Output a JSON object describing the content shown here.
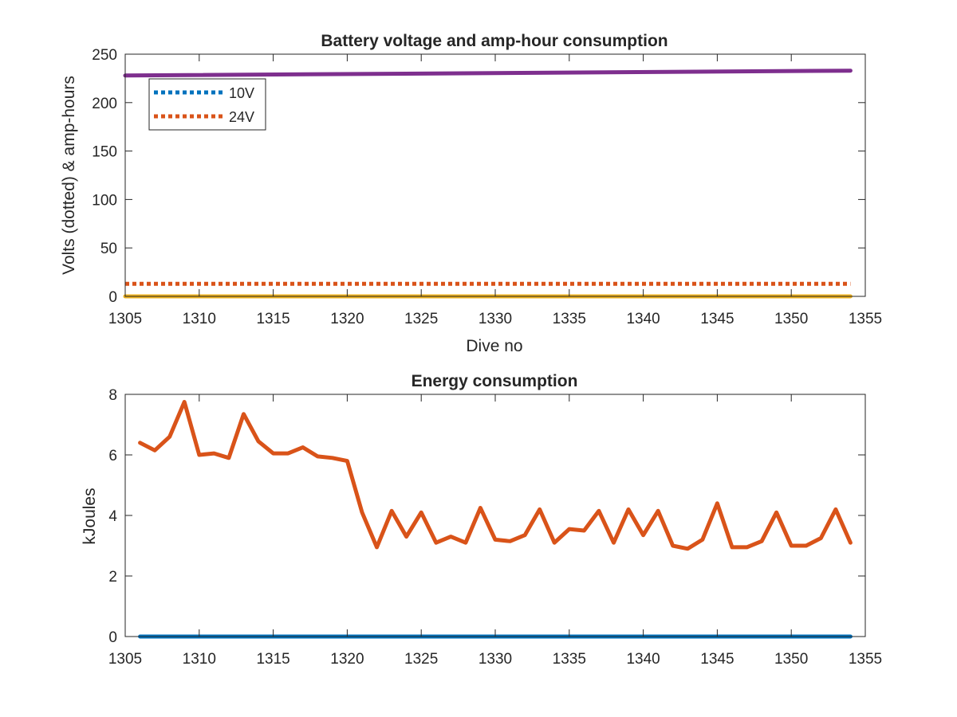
{
  "chart_data": [
    {
      "type": "line",
      "title": "Battery voltage and amp-hour consumption",
      "xlabel": "Dive no",
      "ylabel": "Volts (dotted) & amp-hours",
      "xlim": [
        1305,
        1355
      ],
      "ylim": [
        0,
        250
      ],
      "xticks": [
        1305,
        1310,
        1315,
        1320,
        1325,
        1330,
        1335,
        1340,
        1345,
        1350,
        1355
      ],
      "yticks": [
        0,
        50,
        100,
        150,
        200,
        250
      ],
      "grid": false,
      "legend": {
        "placement": "top-left",
        "entries": [
          "10V",
          "24V"
        ]
      },
      "series": [
        {
          "name": "10V",
          "style": "dotted",
          "color": "#0072BD",
          "x": [
            1305,
            1354
          ],
          "y": [
            0,
            0
          ]
        },
        {
          "name": "24V",
          "style": "dotted",
          "color": "#D95319",
          "x": [
            1305,
            1354
          ],
          "y": [
            13,
            13
          ]
        },
        {
          "style": "solid",
          "color": "#EDB120",
          "x": [
            1305,
            1354
          ],
          "y": [
            0,
            0
          ]
        },
        {
          "style": "solid",
          "color": "#7E2F8E",
          "x": [
            1305,
            1354
          ],
          "y": [
            228,
            233
          ]
        }
      ]
    },
    {
      "type": "line",
      "title": "Energy consumption",
      "xlabel": "",
      "ylabel": "kJoules",
      "xlim": [
        1305,
        1355
      ],
      "ylim": [
        0,
        8
      ],
      "xticks": [
        1305,
        1310,
        1315,
        1320,
        1325,
        1330,
        1335,
        1340,
        1345,
        1350,
        1355
      ],
      "yticks": [
        0,
        2,
        4,
        6,
        8
      ],
      "grid": false,
      "series": [
        {
          "style": "solid",
          "color": "#0072BD",
          "x": [
            1306,
            1354
          ],
          "y": [
            0,
            0
          ]
        },
        {
          "style": "solid",
          "color": "#D95319",
          "x": [
            1306,
            1307,
            1308,
            1309,
            1310,
            1311,
            1312,
            1313,
            1314,
            1315,
            1316,
            1317,
            1318,
            1319,
            1320,
            1321,
            1322,
            1323,
            1324,
            1325,
            1326,
            1327,
            1328,
            1329,
            1330,
            1331,
            1332,
            1333,
            1334,
            1335,
            1336,
            1337,
            1338,
            1339,
            1340,
            1341,
            1342,
            1343,
            1344,
            1345,
            1346,
            1347,
            1348,
            1349,
            1350,
            1351,
            1352,
            1353,
            1354
          ],
          "y": [
            6.4,
            6.15,
            6.6,
            7.75,
            6.0,
            6.05,
            5.9,
            7.35,
            6.45,
            6.05,
            6.05,
            6.25,
            5.95,
            5.9,
            5.8,
            4.1,
            2.95,
            4.15,
            3.3,
            4.1,
            3.1,
            3.3,
            3.1,
            4.25,
            3.2,
            3.15,
            3.35,
            4.2,
            3.1,
            3.55,
            3.5,
            4.15,
            3.1,
            4.2,
            3.35,
            4.15,
            3.0,
            2.9,
            3.2,
            4.4,
            2.95,
            2.95,
            3.15,
            4.1,
            3.0,
            3.0,
            3.25,
            4.2,
            3.1
          ]
        }
      ]
    }
  ]
}
